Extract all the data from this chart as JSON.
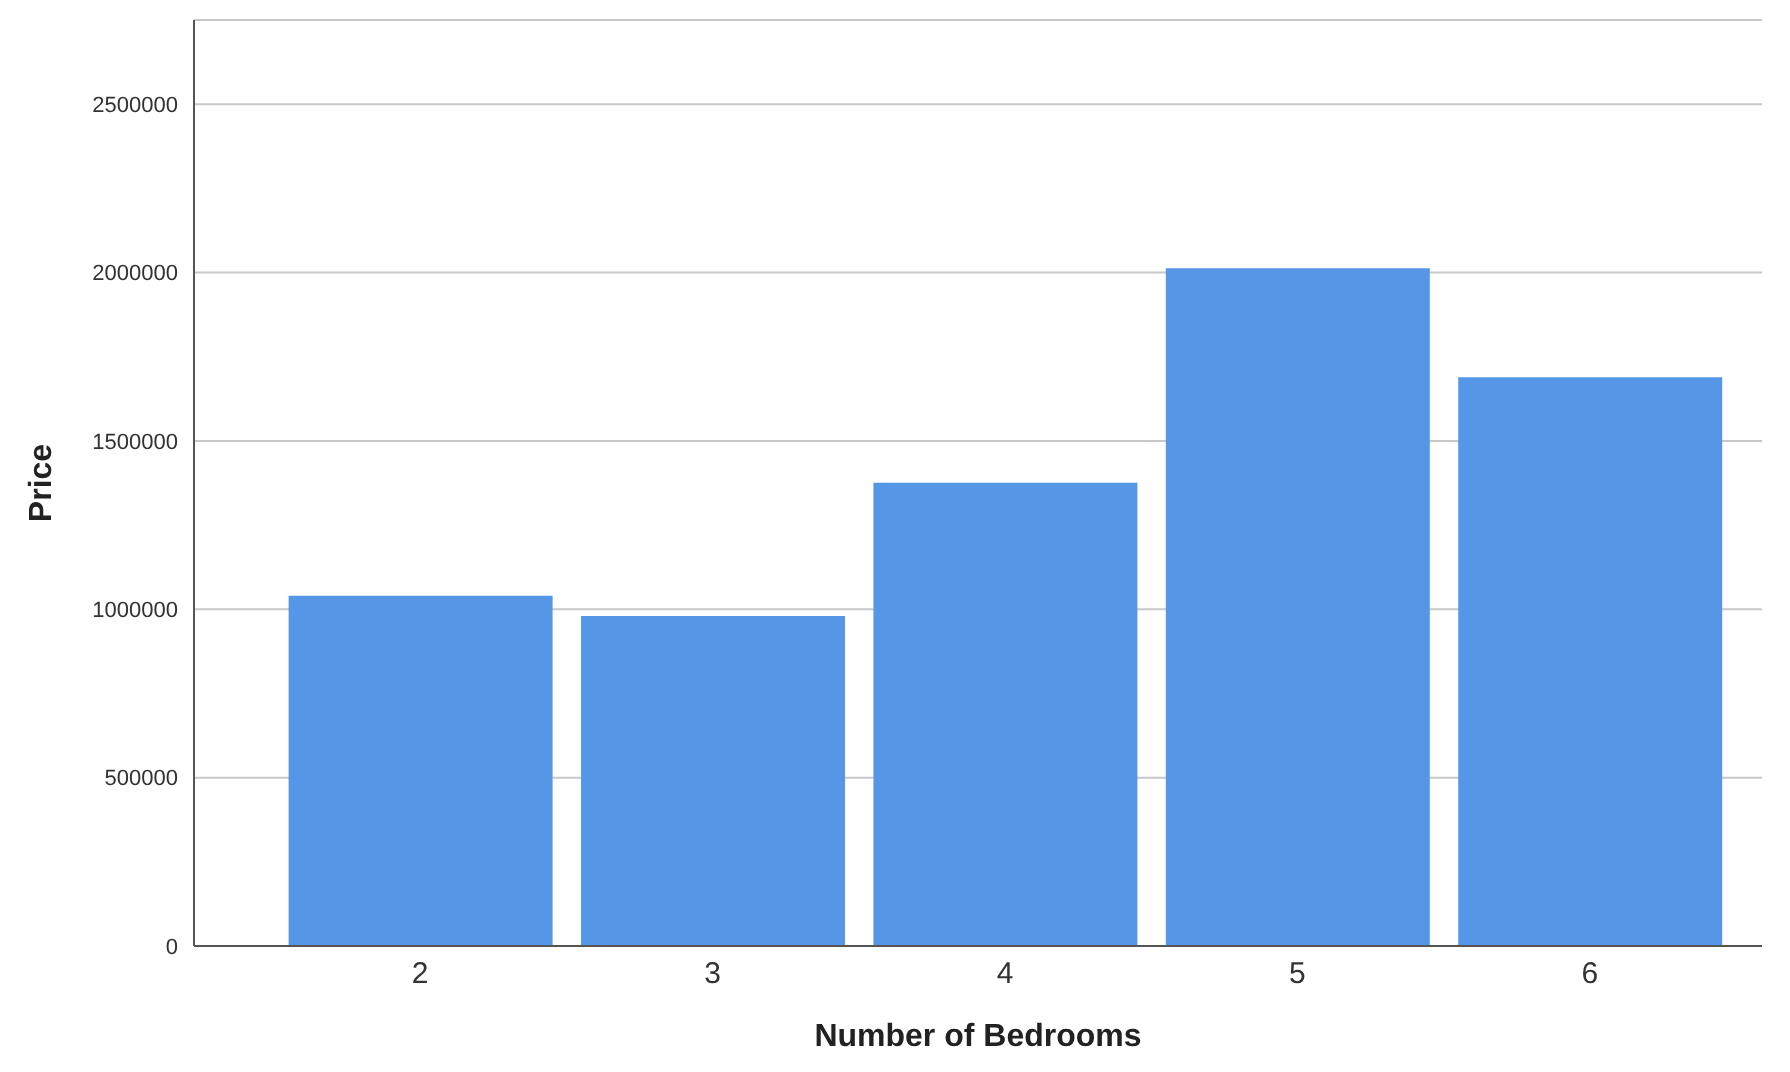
{
  "chart_data": {
    "type": "bar",
    "xlabel": "Number of Bedrooms",
    "ylabel": "Price",
    "categories": [
      "2",
      "3",
      "4",
      "5",
      "6"
    ],
    "values": [
      1040000,
      980000,
      1376000,
      2013000,
      1689000
    ],
    "color": "#5596e6",
    "ylim": [
      0,
      2750000
    ],
    "yticks": [
      0,
      500000,
      1000000,
      1500000,
      2000000,
      2500000
    ],
    "grid": "y"
  }
}
